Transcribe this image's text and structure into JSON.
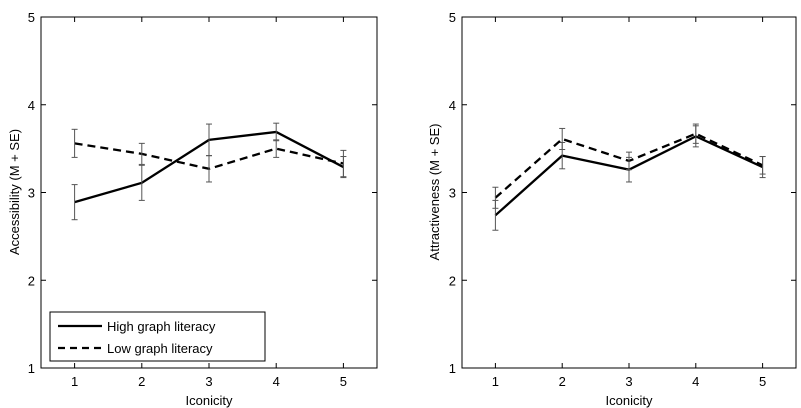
{
  "chart_data": [
    {
      "type": "line",
      "xlabel": "Iconicity",
      "ylabel": "Accessibility (M + SE)",
      "x": [
        1,
        2,
        3,
        4,
        5
      ],
      "xlim": [
        0.5,
        5.5
      ],
      "ylim": [
        1,
        5
      ],
      "yticks": [
        "1",
        "2",
        "3",
        "4",
        "5"
      ],
      "xticks": [
        "1",
        "2",
        "3",
        "4",
        "5"
      ],
      "grid": false,
      "legend_placement": "bottom-left",
      "series": [
        {
          "name": "High graph literacy",
          "style": "solid",
          "values": [
            2.89,
            3.11,
            3.6,
            3.69,
            3.29
          ],
          "se": [
            0.2,
            0.2,
            0.18,
            0.1,
            0.12
          ]
        },
        {
          "name": "Low graph literacy",
          "style": "dashed",
          "values": [
            3.56,
            3.44,
            3.27,
            3.5,
            3.33
          ],
          "se": [
            0.16,
            0.12,
            0.15,
            0.1,
            0.15
          ]
        }
      ]
    },
    {
      "type": "line",
      "xlabel": "Iconicity",
      "ylabel": "Attractiveness (M + SE)",
      "x": [
        1,
        2,
        3,
        4,
        5
      ],
      "xlim": [
        0.5,
        5.5
      ],
      "ylim": [
        1,
        5
      ],
      "yticks": [
        "1",
        "2",
        "3",
        "4",
        "5"
      ],
      "xticks": [
        "1",
        "2",
        "3",
        "4",
        "5"
      ],
      "grid": false,
      "series": [
        {
          "name": "High graph literacy",
          "style": "solid",
          "values": [
            2.74,
            3.42,
            3.26,
            3.64,
            3.29
          ],
          "se": [
            0.17,
            0.15,
            0.14,
            0.12,
            0.12
          ]
        },
        {
          "name": "Low graph literacy",
          "style": "dashed",
          "values": [
            2.94,
            3.61,
            3.36,
            3.67,
            3.31
          ],
          "se": [
            0.12,
            0.12,
            0.1,
            0.11,
            0.1
          ]
        }
      ]
    }
  ],
  "colors": {
    "line": "#000000",
    "errorbar": "#555555",
    "axes": "#000000",
    "background": "#ffffff"
  }
}
